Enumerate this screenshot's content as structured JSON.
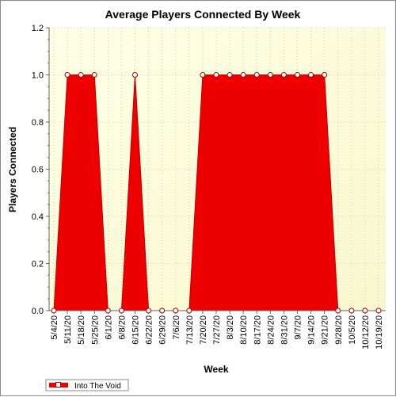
{
  "chart_data": {
    "type": "area",
    "title": "Average Players Connected By Week",
    "xlabel": "Week",
    "ylabel": "Players Connected",
    "ylim": [
      0,
      1.2
    ],
    "yticks": [
      "0.0",
      "0.2",
      "0.4",
      "0.6",
      "0.8",
      "1.0",
      "1.2"
    ],
    "grid": true,
    "legend_position": "bottom-left",
    "categories": [
      "5/4/20",
      "5/11/20",
      "5/18/20",
      "5/25/20",
      "6/1/20",
      "6/8/20",
      "6/15/20",
      "6/22/20",
      "6/29/20",
      "7/6/20",
      "7/13/20",
      "7/20/20",
      "7/27/20",
      "8/3/20",
      "8/10/20",
      "8/17/20",
      "8/24/20",
      "8/31/20",
      "9/7/20",
      "9/14/20",
      "9/21/20",
      "9/28/20",
      "10/5/20",
      "10/12/20",
      "10/19/20"
    ],
    "series": [
      {
        "name": "Into The Void",
        "color": "#ee0000",
        "values": [
          0,
          1,
          1,
          1,
          0,
          0,
          1,
          0,
          0,
          0,
          0,
          1,
          1,
          1,
          1,
          1,
          1,
          1,
          1,
          1,
          1,
          0,
          0,
          0,
          0
        ]
      }
    ],
    "colors": {
      "plot_background_top": "#ffffe6",
      "plot_background_bottom": "#f7f7cf",
      "grid": "#c8c8a8",
      "area": "#ee0000",
      "marker_fill": "#ffffff",
      "marker_stroke": "#aa0000"
    }
  }
}
